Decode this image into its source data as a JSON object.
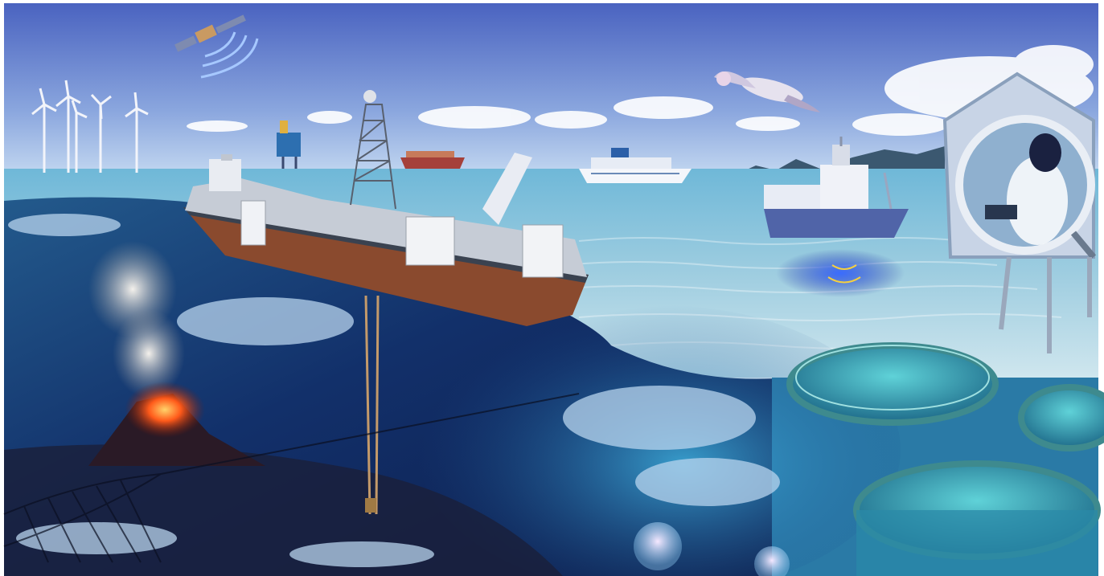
{
  "scene": {
    "subject": "ocean-industry-collage",
    "palette": {
      "sky_top": "#4a63c0",
      "sky_horizon": "#c8dcf2",
      "sea_surface": "#6fb8d8",
      "deep_water": "#0d1d4a",
      "seabed": "#1a1f3a",
      "lava": "#ff5a1a",
      "cage_rim": "#3e8a8e",
      "ship_hull": "#8a4a2e"
    },
    "icons": [
      "satellite-icon",
      "wind-turbine-icon",
      "oil-platform-icon",
      "drill-ship-icon",
      "cargo-ship-icon",
      "cruise-ship-icon",
      "research-vessel-icon",
      "seagull-icon",
      "magnifier-scientist-icon",
      "fish-farm-cage-icon",
      "underwater-volcano-icon",
      "fish-school-icon",
      "jellyfish-icon",
      "trawl-net-icon",
      "drill-pipe-icon"
    ]
  }
}
